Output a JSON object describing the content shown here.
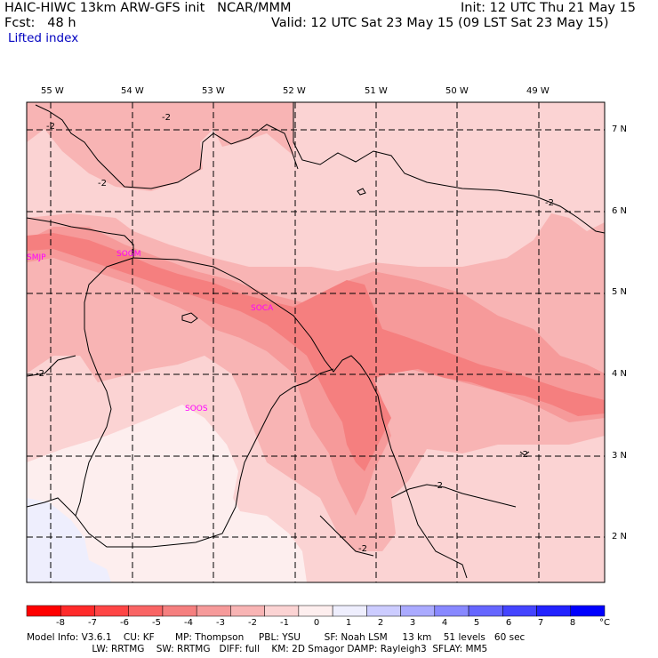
{
  "header": {
    "model_title": "HAIC-HIWC 13km ARW-GFS init   NCAR/MMM",
    "init": "Init: 12 UTC Thu 21 May 15",
    "fcst": "Fcst:   48 h",
    "valid": "Valid: 12 UTC Sat 23 May 15 (09 LST Sat 23 May 15)",
    "field": "Lifted index"
  },
  "map": {
    "lon_labels": [
      "55 W",
      "54 W",
      "53 W",
      "52 W",
      "51 W",
      "50 W",
      "49 W"
    ],
    "lat_labels": [
      "7 N",
      "6 N",
      "5 N",
      "4 N",
      "3 N",
      "2 N"
    ],
    "stations": [
      "SMJP",
      "SOGM",
      "SOCA",
      "SOOS"
    ],
    "contour_labels": [
      "-2",
      "-2",
      "-2",
      "-2",
      "-2",
      "-2",
      "-2",
      "-2"
    ],
    "colors": {
      "le_m4": "#f57f7f",
      "m4_m3": "#f69a9a",
      "m3_m2": "#f8b4b4",
      "m2_m1": "#fbd3d3",
      "m1_0": "#fdeeee",
      "0_1": "#eeeefd",
      "station": "#ff00ff",
      "contour": "#000000"
    }
  },
  "colorbar": {
    "labels": [
      "-8",
      "-7",
      "-6",
      "-5",
      "-4",
      "-3",
      "-2",
      "-1",
      "0",
      "1",
      "2",
      "3",
      "4",
      "5",
      "6",
      "7",
      "8",
      "°C"
    ],
    "colors": [
      "#ff0000",
      "#ff2a2a",
      "#fe4545",
      "#f96464",
      "#f57f7f",
      "#f69a9a",
      "#f8b4b4",
      "#fbd3d3",
      "#fdeeee",
      "#eeeefd",
      "#ccccff",
      "#aaaaff",
      "#8888ff",
      "#6666ff",
      "#4444ff",
      "#2222ff",
      "#0000ff"
    ]
  },
  "model_info": {
    "line1": "Model Info: V3.6.1    CU: KF       MP: Thompson     PBL: YSU        SF: Noah LSM     13 km    51 levels   60 sec",
    "line2": "                      LW: RRTMG    SW: RRTMG   DIFF: full    KM: 2D Smagor DAMP: Rayleigh3  SFLAY: MM5"
  }
}
